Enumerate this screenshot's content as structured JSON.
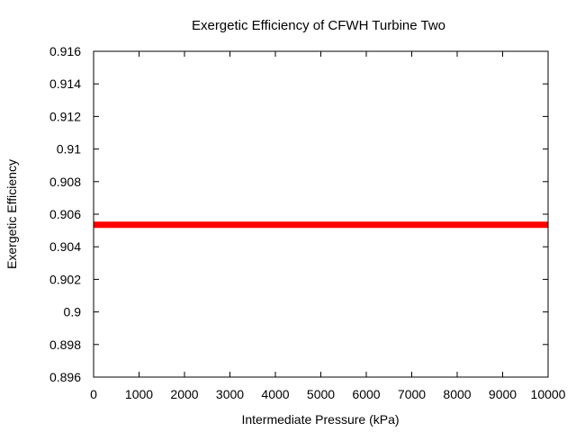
{
  "chart_data": {
    "type": "line",
    "title": "Exergetic Efficiency of CFWH Turbine Two",
    "xlabel": "Intermediate Pressure (kPa)",
    "ylabel": "Exergetic Efficiency",
    "xlim": [
      0,
      10000
    ],
    "ylim": [
      0.896,
      0.916
    ],
    "xticks": [
      0,
      1000,
      2000,
      3000,
      4000,
      5000,
      6000,
      7000,
      8000,
      9000,
      10000
    ],
    "xtick_labels": [
      "0",
      "1000",
      "2000",
      "3000",
      "4000",
      "5000",
      "6000",
      "7000",
      "8000",
      "9000",
      "10000"
    ],
    "yticks": [
      0.896,
      0.898,
      0.9,
      0.902,
      0.904,
      0.906,
      0.908,
      0.91,
      0.912,
      0.914,
      0.916
    ],
    "ytick_labels": [
      "0.896",
      "0.898",
      "0.9",
      "0.902",
      "0.904",
      "0.906",
      "0.908",
      "0.91",
      "0.912",
      "0.914",
      "0.916"
    ],
    "grid": false,
    "legend": "none",
    "series": [
      {
        "color": "#ff0000",
        "x": [
          0,
          1000,
          2000,
          3000,
          4000,
          5000,
          6000,
          7000,
          8000,
          9000,
          10000
        ],
        "y": [
          0.90535,
          0.90535,
          0.90535,
          0.90535,
          0.90535,
          0.90535,
          0.90535,
          0.90535,
          0.90535,
          0.90535,
          0.90535
        ]
      }
    ]
  }
}
